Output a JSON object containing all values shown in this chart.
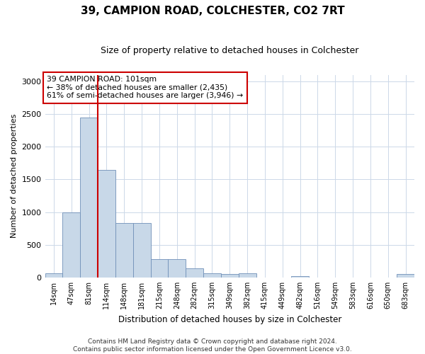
{
  "title": "39, CAMPION ROAD, COLCHESTER, CO2 7RT",
  "subtitle": "Size of property relative to detached houses in Colchester",
  "xlabel": "Distribution of detached houses by size in Colchester",
  "ylabel": "Number of detached properties",
  "bar_color": "#c8d8e8",
  "bar_edge_color": "#7090b8",
  "grid_color": "#ccd8e8",
  "categories": [
    "14sqm",
    "47sqm",
    "81sqm",
    "114sqm",
    "148sqm",
    "181sqm",
    "215sqm",
    "248sqm",
    "282sqm",
    "315sqm",
    "349sqm",
    "382sqm",
    "415sqm",
    "449sqm",
    "482sqm",
    "516sqm",
    "549sqm",
    "583sqm",
    "616sqm",
    "650sqm",
    "683sqm"
  ],
  "values": [
    60,
    990,
    2450,
    1640,
    830,
    830,
    280,
    280,
    140,
    60,
    55,
    60,
    0,
    0,
    20,
    0,
    0,
    0,
    0,
    0,
    50
  ],
  "ylim": [
    0,
    3100
  ],
  "yticks": [
    0,
    500,
    1000,
    1500,
    2000,
    2500,
    3000
  ],
  "property_label": "39 CAMPION ROAD: 101sqm",
  "annotation_line1": "← 38% of detached houses are smaller (2,435)",
  "annotation_line2": "61% of semi-detached houses are larger (3,946) →",
  "vline_color": "#cc0000",
  "annotation_box_color": "#ffffff",
  "annotation_box_edge": "#cc0000",
  "footer_line1": "Contains HM Land Registry data © Crown copyright and database right 2024.",
  "footer_line2": "Contains public sector information licensed under the Open Government Licence v3.0.",
  "vline_x_index": 2,
  "background_color": "#ffffff",
  "fig_width": 6.0,
  "fig_height": 5.0,
  "dpi": 100
}
